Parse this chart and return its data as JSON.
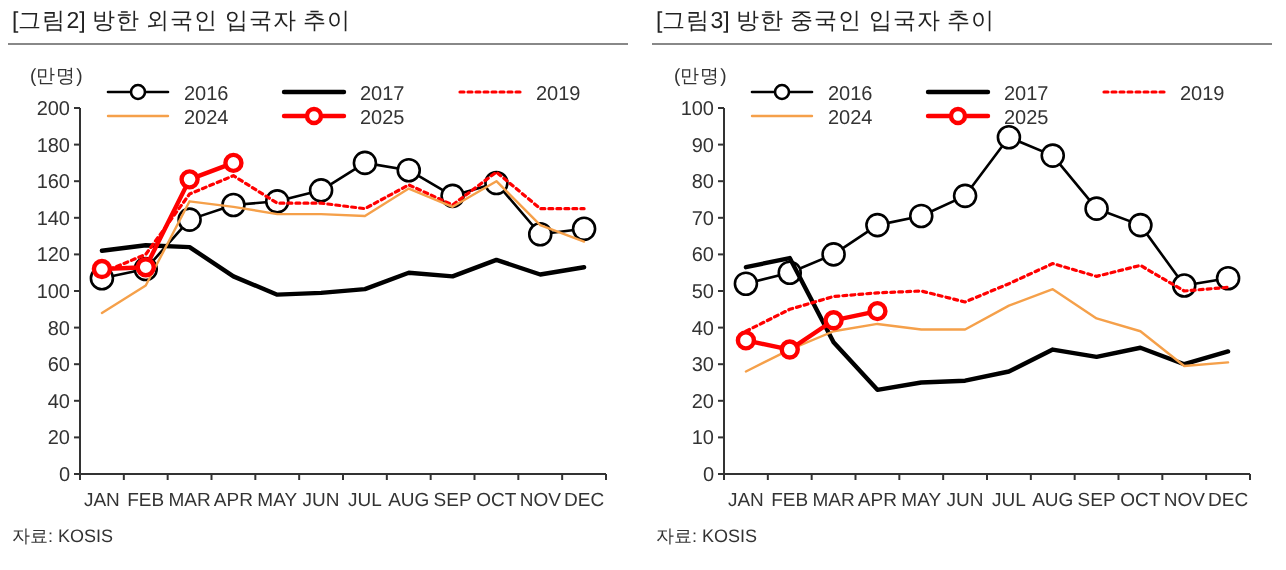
{
  "chart_data": [
    {
      "type": "line",
      "title": "[그림2]  방한 외국인 입국자 추이",
      "ylabel": "(만명)",
      "categories": [
        "JAN",
        "FEB",
        "MAR",
        "APR",
        "MAY",
        "JUN",
        "JUL",
        "AUG",
        "SEP",
        "OCT",
        "NOV",
        "DEC"
      ],
      "ylim": [
        0,
        200
      ],
      "yticks": [
        0,
        20,
        40,
        60,
        80,
        100,
        120,
        140,
        160,
        180,
        200
      ],
      "legend": "top",
      "annotations": [
        "자료: KOSIS"
      ],
      "series": [
        {
          "name": "2016",
          "color": "#000000",
          "marker": "circle",
          "line_style": "solid",
          "values": [
            107,
            112,
            139,
            147,
            149,
            155,
            170,
            166,
            152,
            159,
            131,
            134
          ]
        },
        {
          "name": "2017",
          "color": "#000000",
          "marker": "none",
          "line_style": "solid",
          "values": [
            122,
            125,
            124,
            108,
            98,
            99,
            101,
            110,
            108,
            117,
            109,
            113
          ]
        },
        {
          "name": "2019",
          "color": "#ff0000",
          "marker": "none",
          "line_style": "dotted",
          "values": [
            110,
            120,
            153,
            163,
            148,
            148,
            145,
            158,
            147,
            165,
            145,
            145
          ]
        },
        {
          "name": "2024",
          "color": "#f5a04a",
          "marker": "none",
          "line_style": "solid",
          "values": [
            88,
            103,
            149,
            146,
            142,
            142,
            141,
            156,
            146,
            160,
            136,
            127
          ]
        },
        {
          "name": "2025",
          "color": "#ff0000",
          "marker": "circle",
          "line_style": "solid",
          "values": [
            112,
            113,
            161,
            170,
            null,
            null,
            null,
            null,
            null,
            null,
            null,
            null
          ]
        }
      ]
    },
    {
      "type": "line",
      "title": "[그림3]  방한 중국인 입국자 추이",
      "ylabel": "(만명)",
      "categories": [
        "JAN",
        "FEB",
        "MAR",
        "APR",
        "MAY",
        "JUN",
        "JUL",
        "AUG",
        "SEP",
        "OCT",
        "NOV",
        "DEC"
      ],
      "ylim": [
        0,
        100
      ],
      "yticks": [
        0,
        10,
        20,
        30,
        40,
        50,
        60,
        70,
        80,
        90,
        100
      ],
      "legend": "top",
      "annotations": [
        "자료: KOSIS"
      ],
      "series": [
        {
          "name": "2016",
          "color": "#000000",
          "marker": "circle",
          "line_style": "solid",
          "values": [
            52,
            55,
            60,
            68,
            70.5,
            76,
            92,
            87,
            72.5,
            68,
            51.5,
            53.5
          ]
        },
        {
          "name": "2017",
          "color": "#000000",
          "marker": "none",
          "line_style": "solid",
          "values": [
            56.5,
            59,
            36,
            23,
            25,
            25.5,
            28,
            34,
            32,
            34.5,
            30,
            33.5
          ]
        },
        {
          "name": "2019",
          "color": "#ff0000",
          "marker": "none",
          "line_style": "dotted",
          "values": [
            39,
            45,
            48.5,
            49.5,
            50,
            47,
            52,
            57.5,
            54,
            57,
            50,
            51
          ]
        },
        {
          "name": "2024",
          "color": "#f5a04a",
          "marker": "none",
          "line_style": "solid",
          "values": [
            28,
            34,
            39,
            41,
            39.5,
            39.5,
            46,
            50.5,
            42.5,
            39,
            29.5,
            30.5
          ]
        },
        {
          "name": "2025",
          "color": "#ff0000",
          "marker": "circle",
          "line_style": "solid",
          "values": [
            36.5,
            34,
            42,
            44.5,
            null,
            null,
            null,
            null,
            null,
            null,
            null,
            null
          ]
        }
      ]
    }
  ]
}
